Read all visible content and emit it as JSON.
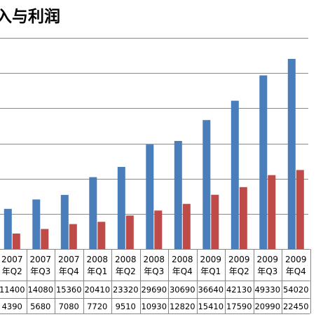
{
  "chart_data": {
    "type": "bar",
    "title": "入与利润",
    "categories": [
      [
        "2007",
        "年Q2"
      ],
      [
        "2007",
        "年Q3"
      ],
      [
        "2007",
        "年Q4"
      ],
      [
        "2008",
        "年Q1"
      ],
      [
        "2008",
        "年Q2"
      ],
      [
        "2008",
        "年Q3"
      ],
      [
        "2008",
        "年Q4"
      ],
      [
        "2009",
        "年Q1"
      ],
      [
        "2009",
        "年Q2"
      ],
      [
        "2009",
        "年Q3"
      ],
      [
        "2009",
        "年Q4"
      ]
    ],
    "series": [
      {
        "values": [
          11400,
          14080,
          15360,
          20410,
          23320,
          29690,
          30690,
          36640,
          42130,
          49330,
          54020
        ],
        "color": "#4a7ebb"
      },
      {
        "values": [
          4390,
          5680,
          7080,
          7720,
          9510,
          10930,
          12820,
          15410,
          17590,
          20990,
          22450
        ],
        "color": "#be4b48"
      }
    ],
    "ylim": [
      0,
      60000
    ],
    "y_gridlines": [
      0,
      10000,
      20000,
      30000,
      40000,
      50000,
      60000
    ],
    "grid": true,
    "data_table": true
  }
}
